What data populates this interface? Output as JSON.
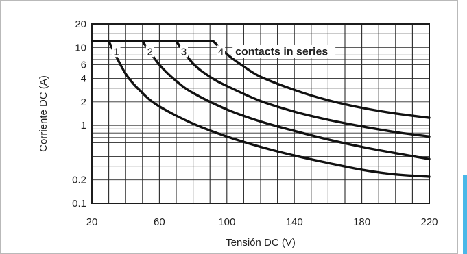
{
  "accent_color": "#4ab8e8",
  "border_color": "#b9b9b9",
  "chart_data": {
    "type": "line",
    "xlabel": "Tensión DC (V)",
    "ylabel": "Corriente DC (A)",
    "xlim": [
      20,
      220
    ],
    "ylim": [
      0.1,
      20
    ],
    "yscale": "log",
    "xticks": [
      20,
      60,
      100,
      140,
      180,
      220
    ],
    "yticks": [
      0.1,
      0.2,
      1,
      2,
      4,
      6,
      10,
      20
    ],
    "grid": true,
    "annotation": "contacts in series",
    "series": [
      {
        "name": "1",
        "x": [
          20,
          30,
          40,
          50,
          60,
          80,
          100,
          120,
          140,
          160,
          180,
          200,
          220
        ],
        "y": [
          12,
          12,
          4.6,
          2.6,
          1.75,
          1.05,
          0.72,
          0.53,
          0.41,
          0.33,
          0.27,
          0.235,
          0.22
        ]
      },
      {
        "name": "2",
        "x": [
          20,
          50,
          60,
          70,
          80,
          100,
          120,
          140,
          160,
          180,
          200,
          220
        ],
        "y": [
          12,
          12,
          6.0,
          3.7,
          2.6,
          1.6,
          1.12,
          0.85,
          0.66,
          0.53,
          0.44,
          0.37
        ]
      },
      {
        "name": "3",
        "x": [
          20,
          70,
          80,
          90,
          100,
          120,
          140,
          160,
          180,
          200,
          220
        ],
        "y": [
          12,
          12,
          6.2,
          4.2,
          3.2,
          2.05,
          1.5,
          1.18,
          0.97,
          0.82,
          0.72
        ]
      },
      {
        "name": "4",
        "x": [
          20,
          92,
          100,
          110,
          120,
          140,
          160,
          180,
          200,
          220
        ],
        "y": [
          12,
          12,
          8.2,
          5.7,
          4.2,
          2.85,
          2.1,
          1.68,
          1.42,
          1.25
        ]
      }
    ]
  }
}
